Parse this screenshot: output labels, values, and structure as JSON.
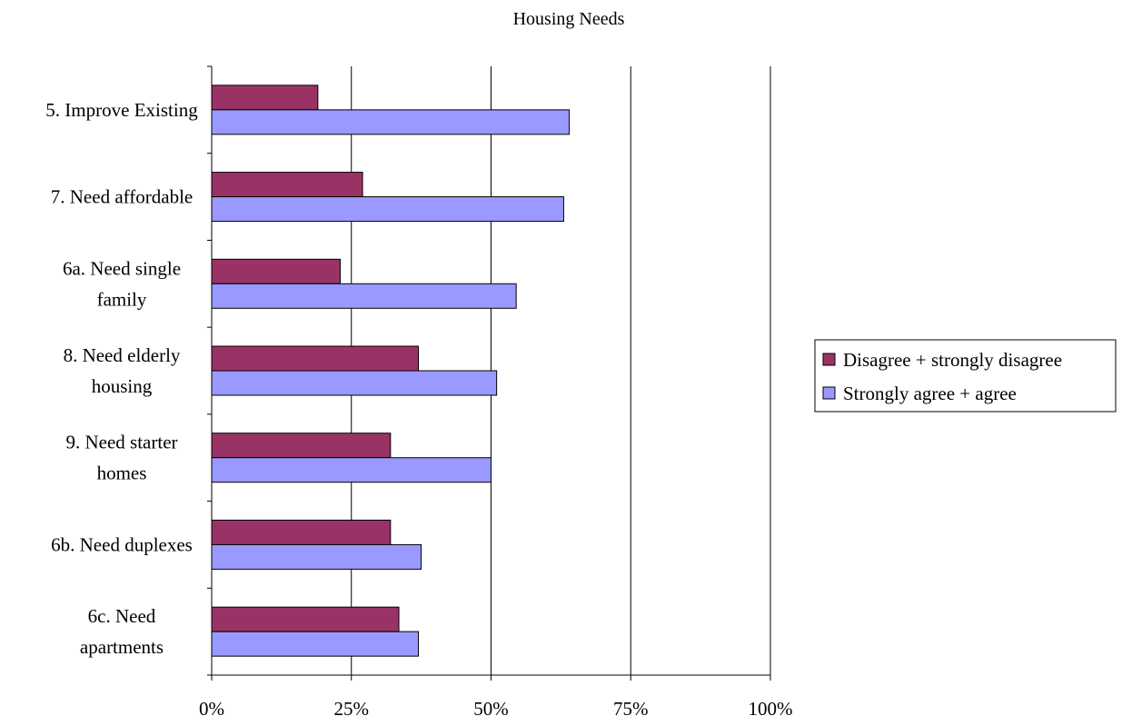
{
  "chart_data": {
    "type": "bar",
    "orientation": "horizontal",
    "title": "Housing Needs",
    "categories": [
      [
        "5. Improve Existing"
      ],
      [
        "7. Need affordable"
      ],
      [
        "6a. Need single",
        "family"
      ],
      [
        "8. Need elderly",
        "housing"
      ],
      [
        "9. Need starter",
        "homes"
      ],
      [
        "6b. Need duplexes"
      ],
      [
        "6c. Need",
        "apartments"
      ]
    ],
    "series": [
      {
        "name": "Disagree + strongly disagree",
        "color": "#993366",
        "values": [
          19,
          27,
          23,
          37,
          32,
          32,
          33.5
        ]
      },
      {
        "name": "Strongly agree + agree",
        "color": "#9999ff",
        "values": [
          64,
          63,
          54.5,
          51,
          50,
          37.5,
          37
        ]
      }
    ],
    "xlim": [
      0,
      100
    ],
    "xticks": [
      "0%",
      "25%",
      "50%",
      "75%",
      "100%"
    ],
    "xtick_values": [
      0,
      25,
      50,
      75,
      100
    ],
    "grid": true,
    "legend_position": "right"
  }
}
